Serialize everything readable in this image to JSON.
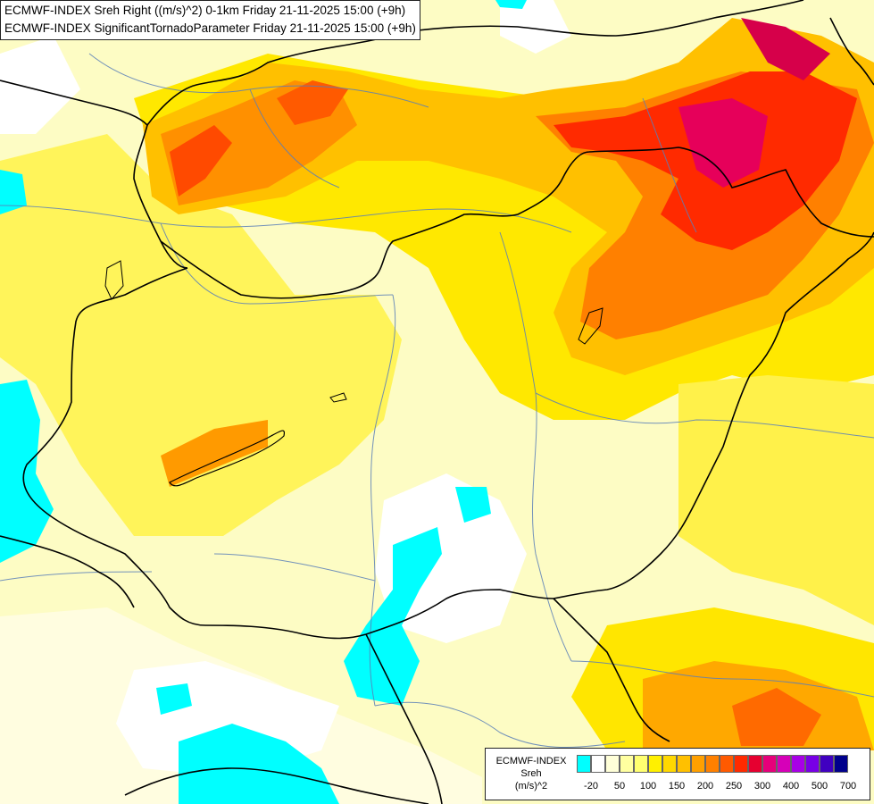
{
  "header": {
    "line1": "ECMWF-INDEX Sreh Right ((m/s)^2) 0-1km Friday 21-11-2025 15:00 (+9h)",
    "line2": "ECMWF-INDEX SignificantTornadoParameter Friday 21-11-2025 15:00 (+9h)"
  },
  "legend": {
    "title1": "ECMWF-INDEX",
    "title2": "Sreh",
    "title3": "(m/s)^2",
    "colors": [
      "#00ffff",
      "#ffffff",
      "#ffffd8",
      "#ffffa0",
      "#ffff70",
      "#fff000",
      "#ffd800",
      "#ffc000",
      "#ffa000",
      "#ff8000",
      "#ff5a00",
      "#ff2a00",
      "#e60030",
      "#e6007a",
      "#d600b8",
      "#a800e6",
      "#7800e6",
      "#4000c0",
      "#00008c"
    ],
    "ticks": [
      "-20",
      "50",
      "100",
      "150",
      "200",
      "250",
      "300",
      "400",
      "500",
      "700"
    ]
  }
}
